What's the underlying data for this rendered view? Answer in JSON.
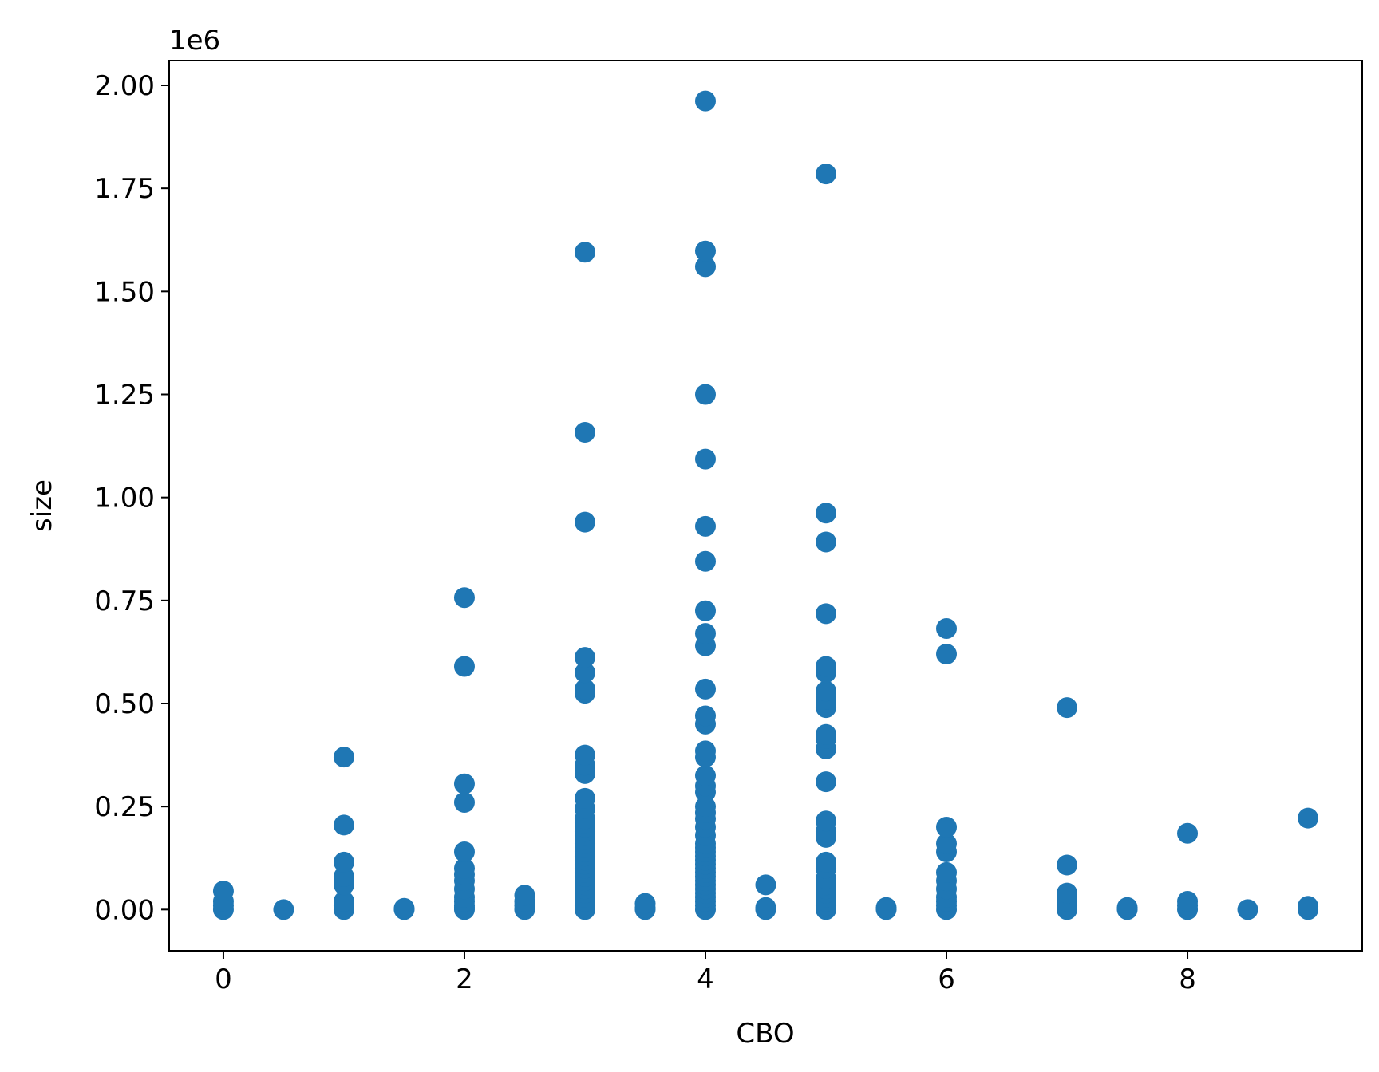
{
  "chart_data": {
    "type": "scatter",
    "title": "",
    "xlabel": "CBO",
    "ylabel": "size",
    "y_scale_label": "1e6",
    "xlim": [
      -0.45,
      9.45
    ],
    "ylim": [
      -0.1,
      2.06
    ],
    "y_multiplier": 1000000,
    "x_ticks": [
      0,
      2,
      4,
      6,
      8
    ],
    "x_tick_labels": [
      "0",
      "2",
      "4",
      "6",
      "8"
    ],
    "y_ticks": [
      0,
      0.25,
      0.5,
      0.75,
      1.0,
      1.25,
      1.5,
      1.75,
      2.0
    ],
    "y_tick_labels": [
      "0.00",
      "0.25",
      "0.50",
      "0.75",
      "1.00",
      "1.25",
      "1.50",
      "1.75",
      "2.00"
    ],
    "grid": false,
    "point_color": "#1f77b4",
    "series": [
      {
        "points": [
          [
            0,
            0.0
          ],
          [
            0,
            0.01
          ],
          [
            0,
            0.02
          ],
          [
            0,
            0.045
          ],
          [
            0.5,
            0.0
          ],
          [
            1,
            0.0
          ],
          [
            1,
            0.01
          ],
          [
            1,
            0.02
          ],
          [
            1,
            0.06
          ],
          [
            1,
            0.08
          ],
          [
            1,
            0.115
          ],
          [
            1,
            0.205
          ],
          [
            1,
            0.37
          ],
          [
            1.5,
            0.0
          ],
          [
            1.5,
            0.003
          ],
          [
            2,
            0.0
          ],
          [
            2,
            0.005
          ],
          [
            2,
            0.01
          ],
          [
            2,
            0.02
          ],
          [
            2,
            0.03
          ],
          [
            2,
            0.05
          ],
          [
            2,
            0.07
          ],
          [
            2,
            0.085
          ],
          [
            2,
            0.1
          ],
          [
            2,
            0.14
          ],
          [
            2,
            0.26
          ],
          [
            2,
            0.305
          ],
          [
            2,
            0.59
          ],
          [
            2,
            0.757
          ],
          [
            2.5,
            0.0
          ],
          [
            2.5,
            0.01
          ],
          [
            2.5,
            0.02
          ],
          [
            2.5,
            0.035
          ],
          [
            3,
            0.0
          ],
          [
            3,
            0.01
          ],
          [
            3,
            0.02
          ],
          [
            3,
            0.03
          ],
          [
            3,
            0.04
          ],
          [
            3,
            0.05
          ],
          [
            3,
            0.06
          ],
          [
            3,
            0.07
          ],
          [
            3,
            0.08
          ],
          [
            3,
            0.09
          ],
          [
            3,
            0.1
          ],
          [
            3,
            0.11
          ],
          [
            3,
            0.12
          ],
          [
            3,
            0.13
          ],
          [
            3,
            0.14
          ],
          [
            3,
            0.15
          ],
          [
            3,
            0.16
          ],
          [
            3,
            0.17
          ],
          [
            3,
            0.18
          ],
          [
            3,
            0.19
          ],
          [
            3,
            0.2
          ],
          [
            3,
            0.21
          ],
          [
            3,
            0.22
          ],
          [
            3,
            0.245
          ],
          [
            3,
            0.27
          ],
          [
            3,
            0.33
          ],
          [
            3,
            0.35
          ],
          [
            3,
            0.375
          ],
          [
            3,
            0.525
          ],
          [
            3,
            0.535
          ],
          [
            3,
            0.575
          ],
          [
            3,
            0.612
          ],
          [
            3,
            0.94
          ],
          [
            3,
            1.158
          ],
          [
            3,
            1.595
          ],
          [
            3.5,
            0.0
          ],
          [
            3.5,
            0.005
          ],
          [
            3.5,
            0.015
          ],
          [
            4,
            0.0
          ],
          [
            4,
            0.01
          ],
          [
            4,
            0.02
          ],
          [
            4,
            0.03
          ],
          [
            4,
            0.04
          ],
          [
            4,
            0.05
          ],
          [
            4,
            0.06
          ],
          [
            4,
            0.07
          ],
          [
            4,
            0.08
          ],
          [
            4,
            0.09
          ],
          [
            4,
            0.1
          ],
          [
            4,
            0.11
          ],
          [
            4,
            0.12
          ],
          [
            4,
            0.13
          ],
          [
            4,
            0.14
          ],
          [
            4,
            0.15
          ],
          [
            4,
            0.16
          ],
          [
            4,
            0.18
          ],
          [
            4,
            0.2
          ],
          [
            4,
            0.22
          ],
          [
            4,
            0.235
          ],
          [
            4,
            0.25
          ],
          [
            4,
            0.285
          ],
          [
            4,
            0.3
          ],
          [
            4,
            0.325
          ],
          [
            4,
            0.37
          ],
          [
            4,
            0.385
          ],
          [
            4,
            0.45
          ],
          [
            4,
            0.47
          ],
          [
            4,
            0.535
          ],
          [
            4,
            0.64
          ],
          [
            4,
            0.67
          ],
          [
            4,
            0.725
          ],
          [
            4,
            0.845
          ],
          [
            4,
            0.93
          ],
          [
            4,
            1.093
          ],
          [
            4,
            1.25
          ],
          [
            4,
            1.56
          ],
          [
            4,
            1.598
          ],
          [
            4,
            1.962
          ],
          [
            4.5,
            0.0
          ],
          [
            4.5,
            0.005
          ],
          [
            4.5,
            0.06
          ],
          [
            5,
            0.0
          ],
          [
            5,
            0.01
          ],
          [
            5,
            0.02
          ],
          [
            5,
            0.03
          ],
          [
            5,
            0.04
          ],
          [
            5,
            0.05
          ],
          [
            5,
            0.06
          ],
          [
            5,
            0.075
          ],
          [
            5,
            0.1
          ],
          [
            5,
            0.115
          ],
          [
            5,
            0.175
          ],
          [
            5,
            0.19
          ],
          [
            5,
            0.215
          ],
          [
            5,
            0.31
          ],
          [
            5,
            0.39
          ],
          [
            5,
            0.415
          ],
          [
            5,
            0.425
          ],
          [
            5,
            0.49
          ],
          [
            5,
            0.51
          ],
          [
            5,
            0.53
          ],
          [
            5,
            0.575
          ],
          [
            5,
            0.59
          ],
          [
            5,
            0.718
          ],
          [
            5,
            0.892
          ],
          [
            5,
            0.962
          ],
          [
            5,
            1.785
          ],
          [
            5.5,
            0.0
          ],
          [
            5.5,
            0.005
          ],
          [
            6,
            0.0
          ],
          [
            6,
            0.01
          ],
          [
            6,
            0.02
          ],
          [
            6,
            0.03
          ],
          [
            6,
            0.05
          ],
          [
            6,
            0.07
          ],
          [
            6,
            0.09
          ],
          [
            6,
            0.14
          ],
          [
            6,
            0.16
          ],
          [
            6,
            0.2
          ],
          [
            6,
            0.62
          ],
          [
            6,
            0.682
          ],
          [
            7,
            0.0
          ],
          [
            7,
            0.01
          ],
          [
            7,
            0.02
          ],
          [
            7,
            0.04
          ],
          [
            7,
            0.108
          ],
          [
            7,
            0.49
          ],
          [
            7.5,
            0.0
          ],
          [
            7.5,
            0.005
          ],
          [
            8,
            0.0
          ],
          [
            8,
            0.01
          ],
          [
            8,
            0.02
          ],
          [
            8,
            0.185
          ],
          [
            8.5,
            0.0
          ],
          [
            9,
            0.0
          ],
          [
            9,
            0.008
          ],
          [
            9,
            0.222
          ]
        ]
      }
    ]
  }
}
